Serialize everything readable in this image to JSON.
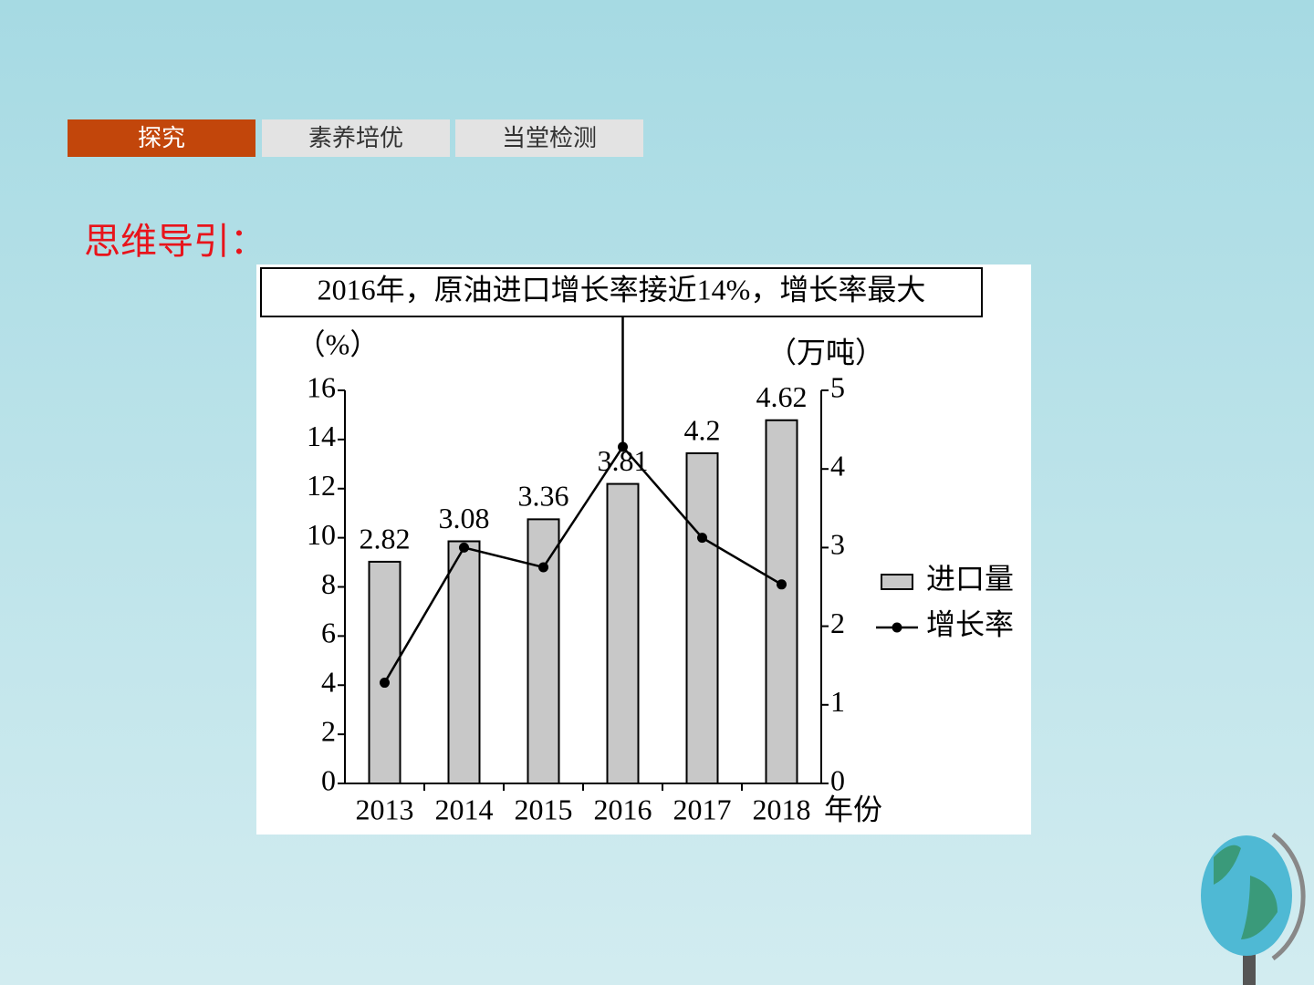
{
  "tabs": [
    "探究",
    "素养培优",
    "当堂检测"
  ],
  "heading": "思维导引：",
  "chart_data": {
    "type": "bar",
    "annotation": "2016年，原油进口增长率接近14%，增长率最大",
    "y_label": "（%）",
    "y2_label": "（万吨）",
    "x_label": "年份",
    "categories": [
      "2013",
      "2014",
      "2015",
      "2016",
      "2017",
      "2018"
    ],
    "series": [
      {
        "name": "进口量",
        "type": "bar",
        "axis": "y2",
        "color": "#c8c8c8",
        "values": [
          2.82,
          3.08,
          3.36,
          3.81,
          4.2,
          4.62
        ]
      },
      {
        "name": "增长率",
        "type": "line",
        "color": "#000000",
        "values": [
          4.1,
          9.6,
          8.8,
          13.7,
          10.0,
          8.1
        ]
      }
    ],
    "ylim": [
      0,
      16
    ],
    "yticks": [
      0,
      2,
      4,
      6,
      8,
      10,
      12,
      14,
      16
    ],
    "y2lim": [
      0,
      5
    ],
    "y2ticks": [
      0,
      1,
      2,
      3,
      4,
      5
    ],
    "legend": "right"
  }
}
